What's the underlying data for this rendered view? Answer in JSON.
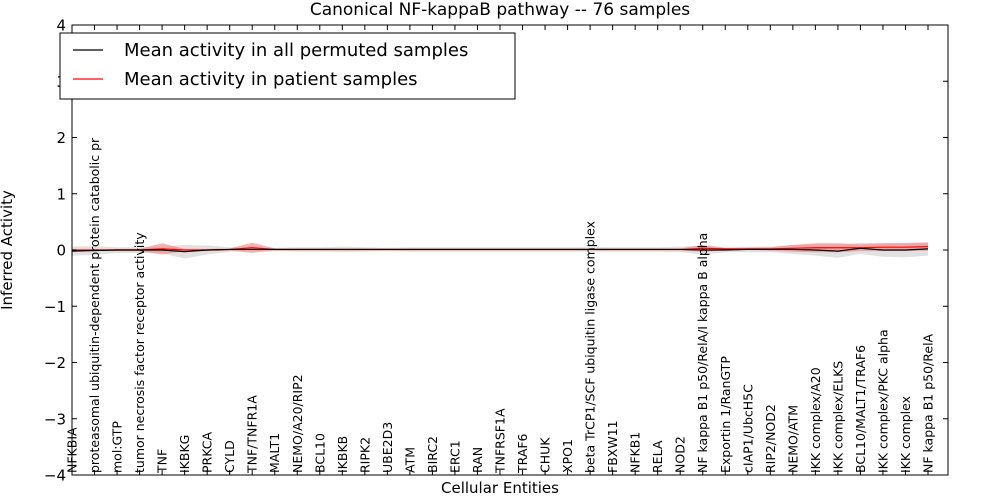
{
  "chart_data": {
    "type": "line",
    "title": "Canonical NF-kappaB pathway -- 76 samples",
    "xlabel": "Cellular Entities",
    "ylabel": "Inferred Activity",
    "ylim": [
      -4,
      4
    ],
    "yticks": [
      -4,
      -3,
      -2,
      -1,
      0,
      1,
      2,
      3,
      4
    ],
    "ytick_labels": [
      "−4",
      "−3",
      "−2",
      "−1",
      "0",
      "1",
      "2",
      "3",
      "4"
    ],
    "grid": false,
    "legend": "top-left",
    "categories": [
      "NFKBIA",
      "proteasomal ubiquitin-dependent protein catabolic pr",
      "mol:GTP",
      "tumor necrosis factor receptor activity",
      "TNF",
      "IKBKG",
      "PRKCA",
      "CYLD",
      "TNF/TNFR1A",
      "MALT1",
      "NEMO/A20/RIP2",
      "BCL10",
      "IKBKB",
      "RIPK2",
      "UBE2D3",
      "ATM",
      "BIRC2",
      "ERC1",
      "RAN",
      "TNFRSF1A",
      "TRAF6",
      "CHUK",
      "XPO1",
      "beta TrCP1/SCF ubiquitin ligase complex",
      "FBXW11",
      "NFKB1",
      "RELA",
      "NOD2",
      "NF kappa B1 p50/RelA/I kappa B alpha",
      "Exportin 1/RanGTP",
      "cIAP1/UbcH5C",
      "RIP2/NOD2",
      "NEMO/ATM",
      "IKK complex/A20",
      "IKK complex/ELKS",
      "BCL10/MALT1/TRAF6",
      "IKK complex/PKC alpha",
      "IKK complex",
      "NF kappa B1 p50/RelA"
    ],
    "series": [
      {
        "name": "Mean activity in all permuted samples",
        "color": "#000000",
        "values": [
          -0.02,
          -0.01,
          0.0,
          0.0,
          0.0,
          -0.03,
          0.0,
          0.01,
          0.01,
          0.01,
          0.01,
          0.01,
          0.01,
          0.01,
          0.01,
          0.01,
          0.01,
          0.01,
          0.01,
          0.01,
          0.01,
          0.01,
          0.01,
          0.01,
          0.01,
          0.01,
          0.01,
          0.01,
          0.0,
          0.0,
          0.01,
          0.01,
          0.01,
          0.0,
          -0.02,
          0.03,
          0.0,
          0.0,
          0.02
        ],
        "band": [
          0.08,
          0.08,
          0.05,
          0.05,
          0.06,
          0.12,
          0.08,
          0.04,
          0.03,
          0.03,
          0.04,
          0.04,
          0.05,
          0.04,
          0.03,
          0.04,
          0.04,
          0.04,
          0.04,
          0.04,
          0.04,
          0.04,
          0.04,
          0.04,
          0.04,
          0.04,
          0.04,
          0.05,
          0.08,
          0.04,
          0.05,
          0.05,
          0.08,
          0.1,
          0.12,
          0.1,
          0.12,
          0.13,
          0.12
        ],
        "band_color": "#c8c8c8"
      },
      {
        "name": "Mean activity in patient samples",
        "color": "#ff0000",
        "values": [
          0.0,
          0.0,
          0.0,
          0.0,
          0.02,
          0.0,
          0.0,
          0.01,
          0.04,
          0.01,
          0.01,
          0.01,
          0.01,
          0.01,
          0.01,
          0.01,
          0.01,
          0.01,
          0.01,
          0.01,
          0.01,
          0.01,
          0.01,
          0.01,
          0.01,
          0.01,
          0.01,
          0.01,
          0.03,
          0.02,
          0.02,
          0.02,
          0.03,
          0.04,
          0.04,
          0.04,
          0.05,
          0.05,
          0.06
        ],
        "band": [
          0.01,
          0.01,
          0.02,
          0.02,
          0.1,
          0.02,
          0.02,
          0.02,
          0.09,
          0.02,
          0.02,
          0.02,
          0.02,
          0.02,
          0.02,
          0.02,
          0.02,
          0.02,
          0.02,
          0.02,
          0.02,
          0.02,
          0.02,
          0.02,
          0.02,
          0.02,
          0.02,
          0.02,
          0.06,
          0.02,
          0.02,
          0.03,
          0.06,
          0.08,
          0.08,
          0.06,
          0.07,
          0.07,
          0.07
        ],
        "band_color": "#f08080"
      }
    ]
  }
}
